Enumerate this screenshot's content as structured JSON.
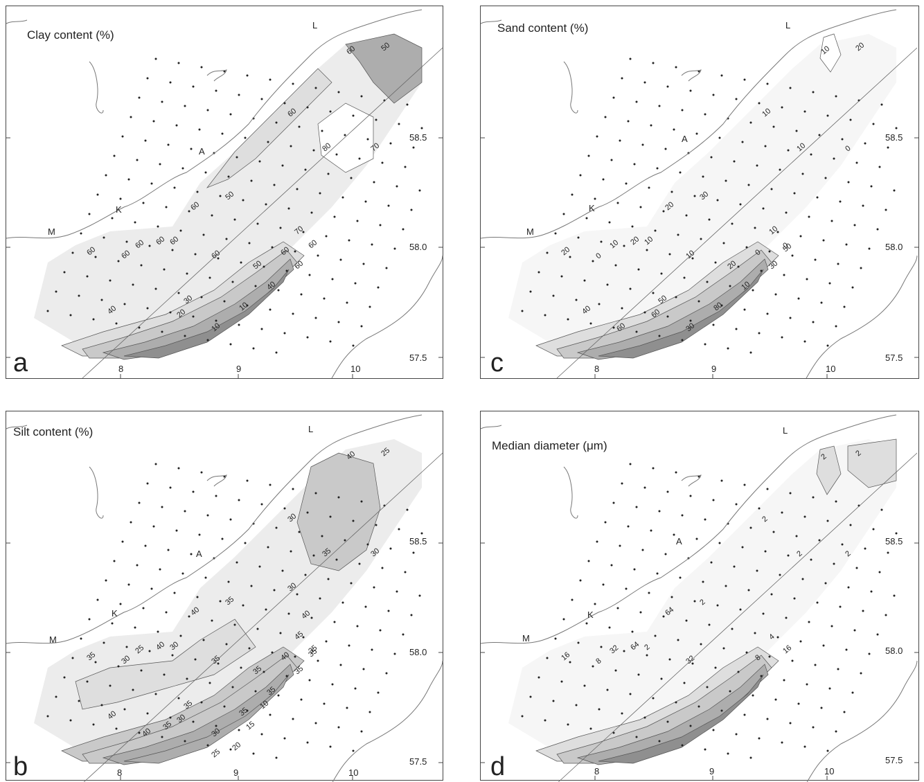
{
  "panels": {
    "a": {
      "letter": "a",
      "title": "Clay content (%)",
      "contour_labels": [
        "60",
        "50",
        "60",
        "80",
        "70",
        "70",
        "60",
        "60",
        "60",
        "60",
        "60",
        "60",
        "60",
        "60",
        "60",
        "50",
        "40",
        "30",
        "20",
        "10",
        "10",
        "40",
        "50",
        "60"
      ]
    },
    "b": {
      "letter": "b",
      "title": "Silt content (%)",
      "contour_labels": [
        "40",
        "25",
        "30",
        "35",
        "30",
        "45",
        "40",
        "35",
        "25",
        "40",
        "30",
        "30",
        "35",
        "35",
        "40",
        "35",
        "40",
        "35",
        "30",
        "30",
        "35",
        "35",
        "35",
        "35",
        "35",
        "40",
        "35",
        "25",
        "20",
        "15",
        "10",
        "40",
        "30"
      ]
    },
    "c": {
      "letter": "c",
      "title": "Sand content (%)",
      "contour_labels": [
        "10",
        "20",
        "10",
        "10",
        "0",
        "10",
        "0",
        "0",
        "10",
        "20",
        "10",
        "0",
        "20",
        "10",
        "20",
        "30",
        "40",
        "50",
        "60",
        "30",
        "80",
        "10",
        "20",
        "30",
        "50",
        "60"
      ]
    },
    "d": {
      "letter": "d",
      "title": "Median diameter (μm)",
      "contour_labels": [
        "2",
        "2",
        "2",
        "2",
        "2",
        "4",
        "8",
        "16",
        "32",
        "64",
        "2",
        "8",
        "16",
        "32",
        "64",
        "2"
      ]
    }
  },
  "axes": {
    "lon_ticks": [
      "8",
      "9",
      "10"
    ],
    "lat_ticks": [
      "58.5",
      "58.0",
      "57.5"
    ]
  },
  "places": [
    "L",
    "A",
    "K",
    "M"
  ],
  "colors": {
    "land_line": "#777777",
    "frame": "#444444",
    "shade1": "#ececec",
    "shade2": "#dedede",
    "shade3": "#c9c9c9",
    "shade4": "#adadad",
    "shade5": "#8f8f8f",
    "shade6": "#6f6f6f"
  }
}
